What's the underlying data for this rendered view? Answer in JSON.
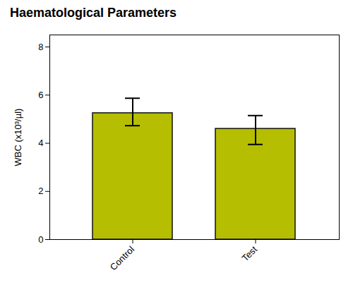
{
  "chart_data": {
    "type": "bar",
    "title": "Haematological Parameters",
    "categories": [
      "Control",
      "Test"
    ],
    "values": [
      5.25,
      4.6
    ],
    "errors_upper": [
      0.62,
      0.55
    ],
    "errors_lower": [
      0.52,
      0.65
    ],
    "color": "#b5be00",
    "ylabel": "WBC (x10³/µl)",
    "ylim": [
      0,
      8.5
    ],
    "yticks": [
      0,
      2,
      4,
      6,
      8
    ],
    "grid": false
  }
}
